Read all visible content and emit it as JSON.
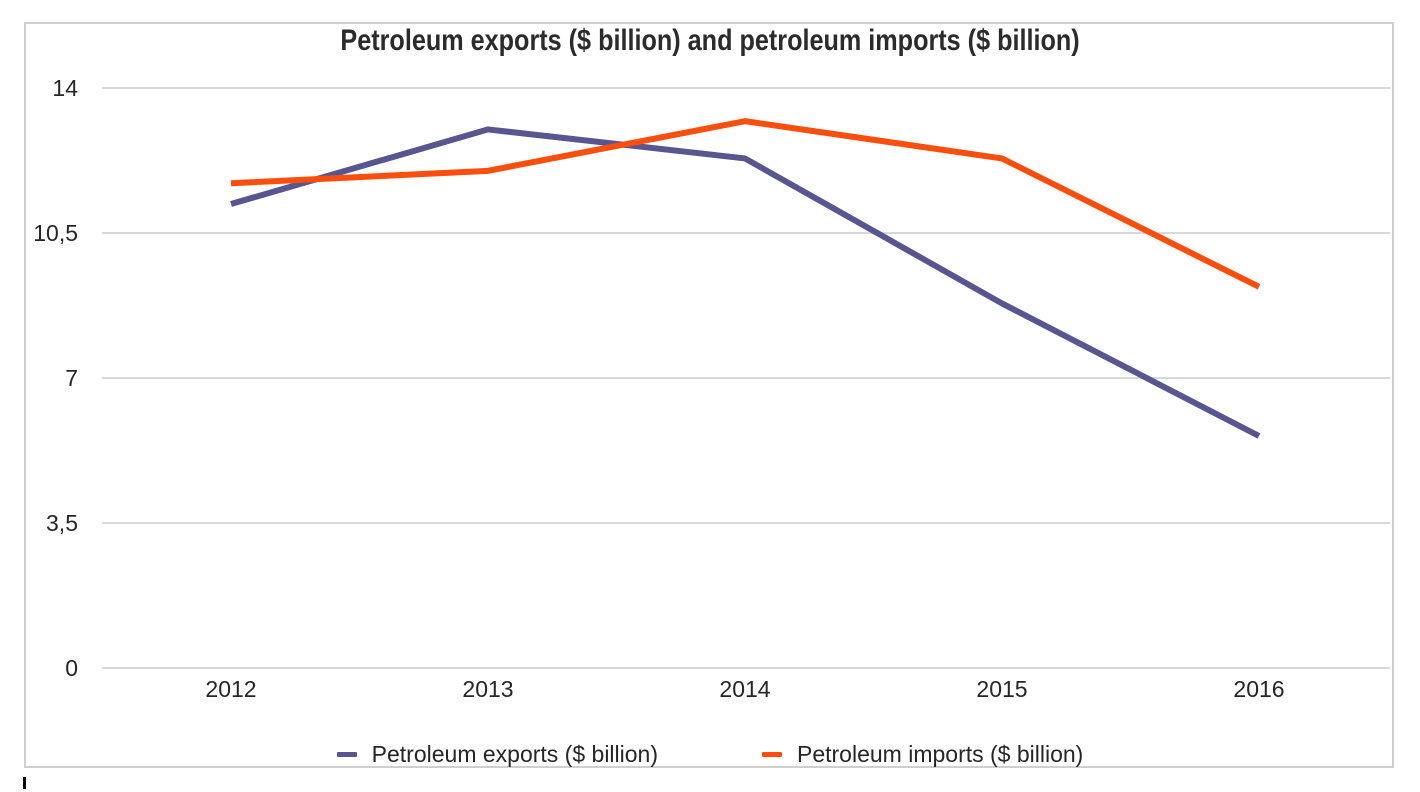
{
  "title": "Petroleum exports ($ billion) and petroleum imports ($ billion)",
  "chart_data": {
    "type": "line",
    "title": "Petroleum exports ($ billion) and petroleum imports ($ billion)",
    "categories": [
      "2012",
      "2013",
      "2014",
      "2015",
      "2016"
    ],
    "series": [
      {
        "name": "Petroleum exports ($ billion)",
        "color": "#585690",
        "values": [
          11.2,
          13.0,
          12.3,
          8.8,
          5.6
        ]
      },
      {
        "name": "Petroleum imports ($ billion)",
        "color": "#f94e0d",
        "values": [
          11.7,
          12.0,
          13.2,
          12.3,
          9.2
        ]
      }
    ],
    "xlabel": "",
    "ylabel": "",
    "ylim": [
      0,
      14
    ],
    "ytick_labels": [
      "0",
      "3,5",
      "7",
      "10,5",
      "14"
    ],
    "ytick_values": [
      0,
      3.5,
      7,
      10.5,
      14
    ],
    "grid": true,
    "legend_position": "bottom",
    "decimal_separator": "comma"
  },
  "colors": {
    "frame_border": "#d0cece",
    "gridline": "#d9d9d9",
    "axis_text": "#262626",
    "title_text": "#2b2b2b",
    "background": "#ffffff",
    "exports_line": "#585690",
    "imports_line": "#f94e0d"
  }
}
